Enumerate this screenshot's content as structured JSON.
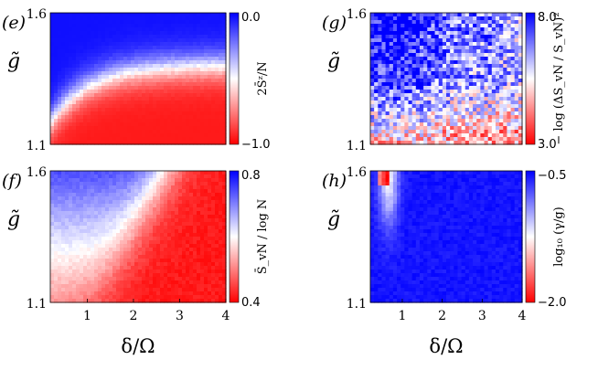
{
  "figure": {
    "x_axis_label": "δ/Ω",
    "y_axis_label": "g̃"
  },
  "colors": {
    "low": "#ff0000",
    "mid": "#ffffff",
    "high": "#0000ff"
  },
  "chart_data": [
    {
      "type": "heatmap",
      "panel_label": "(e)",
      "colorbar_label": "2S̄ᶻ/N",
      "colorbar_ticks": [
        "0.0",
        "−1.0"
      ],
      "colorbar_range": [
        -1.0,
        0.0
      ],
      "y_ticks": [
        "1.6",
        "1.1"
      ],
      "x_ticks": [],
      "ylim": [
        1.1,
        1.6
      ],
      "xlim": [
        0.2,
        4.0
      ],
      "grid": false
    },
    {
      "type": "heatmap",
      "panel_label": "(g)",
      "colorbar_label": "− log (ΔS_vN / S_vN)²",
      "colorbar_ticks": [
        "8.0",
        "3.0"
      ],
      "colorbar_range": [
        3.0,
        8.0
      ],
      "y_ticks": [
        "1.6",
        "1.1"
      ],
      "x_ticks": [],
      "ylim": [
        1.1,
        1.6
      ],
      "xlim": [
        0.2,
        4.0
      ],
      "grid": false
    },
    {
      "type": "heatmap",
      "panel_label": "(f)",
      "colorbar_label": "S̄_vN / log N",
      "colorbar_ticks": [
        "0.8",
        "0.4"
      ],
      "colorbar_range": [
        0.4,
        0.8
      ],
      "y_ticks": [
        "1.6",
        "1.1"
      ],
      "x_ticks": [
        "1",
        "2",
        "3",
        "4"
      ],
      "ylim": [
        1.1,
        1.6
      ],
      "xlim": [
        0.2,
        4.0
      ],
      "grid": false
    },
    {
      "type": "heatmap",
      "panel_label": "(h)",
      "colorbar_label": "log₁₀ (γ/g)",
      "colorbar_ticks": [
        "−0.5",
        "−2.0"
      ],
      "colorbar_range": [
        -2.0,
        -0.5
      ],
      "y_ticks": [
        "1.6",
        "1.1"
      ],
      "x_ticks": [
        "1",
        "2",
        "3",
        "4"
      ],
      "ylim": [
        1.1,
        1.6
      ],
      "xlim": [
        0.2,
        4.0
      ],
      "grid": false
    }
  ]
}
